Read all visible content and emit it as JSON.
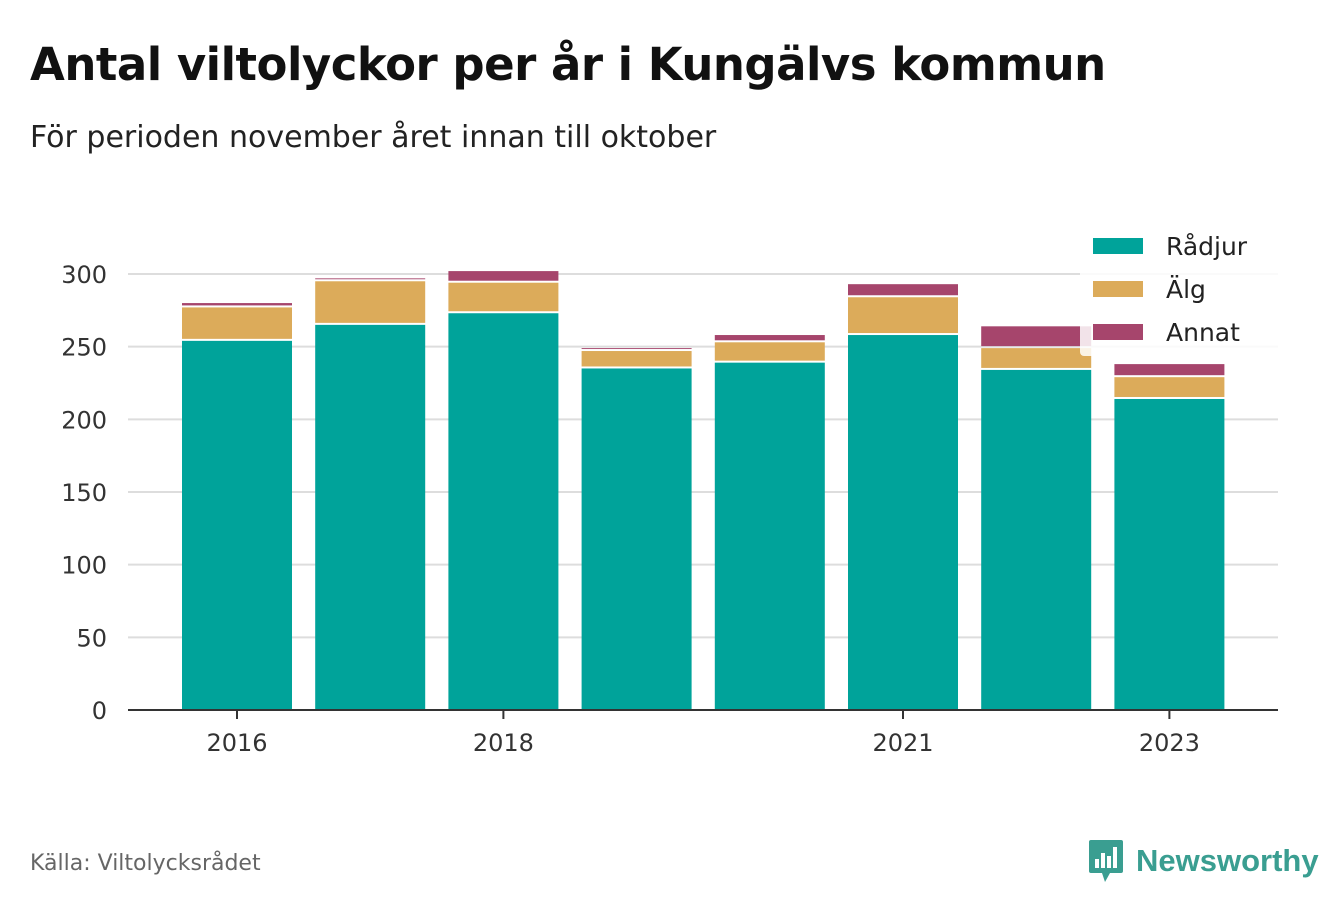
{
  "title": "Antal viltolyckor per år i Kungälvs kommun",
  "subtitle": "För perioden november året innan till oktober",
  "source": "Källa: Viltolycksrådet",
  "brand": {
    "name": "Newsworthy",
    "icon": "chat-bubble-bar-chart-icon"
  },
  "colors": {
    "radjur": "#00a39a",
    "alg": "#dcab5a",
    "annat": "#a6456c",
    "grid": "#dddddd",
    "axis": "#333333"
  },
  "chart_data": {
    "type": "bar",
    "stacked": true,
    "title": "Antal viltolyckor per år i Kungälvs kommun",
    "subtitle": "För perioden november året innan till oktober",
    "xlabel": "",
    "ylabel": "",
    "categories": [
      "2016",
      "2017",
      "2018",
      "2019",
      "2020",
      "2021",
      "2022",
      "2023"
    ],
    "xtick_labels": [
      "2016",
      "",
      "2018",
      "",
      "",
      "2021",
      "",
      "2023"
    ],
    "ylim": [
      0,
      300
    ],
    "yticks": [
      0,
      50,
      100,
      150,
      200,
      250,
      300
    ],
    "grid": true,
    "legend_position": "top-right",
    "series": [
      {
        "name": "Rådjur",
        "color": "#00a39a",
        "values": [
          254,
          265,
          273,
          235,
          239,
          258,
          234,
          214
        ]
      },
      {
        "name": "Älg",
        "color": "#dcab5a",
        "values": [
          23,
          30,
          21,
          12,
          14,
          26,
          15,
          15
        ]
      },
      {
        "name": "Annat",
        "color": "#a6456c",
        "values": [
          3,
          2,
          8,
          2,
          5,
          9,
          15,
          9
        ]
      }
    ]
  }
}
